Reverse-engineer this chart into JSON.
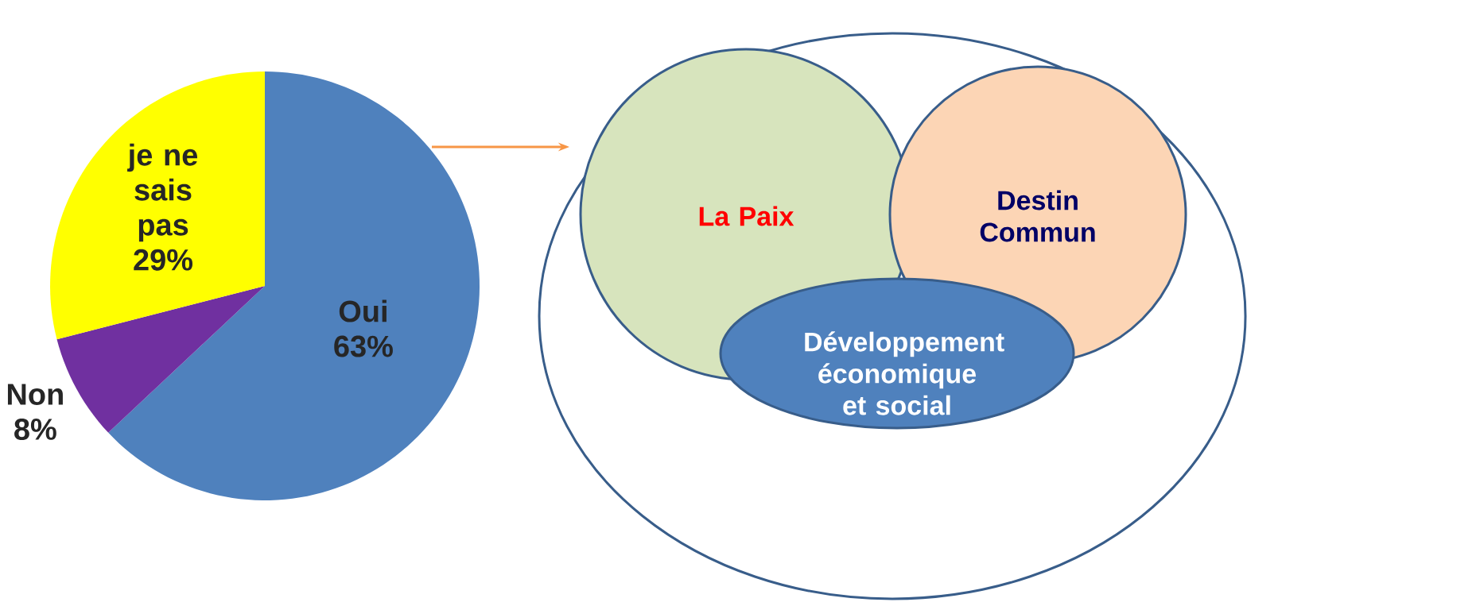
{
  "chart_data": [
    {
      "type": "pie",
      "categories": [
        "Oui",
        "Non",
        "je ne sais pas"
      ],
      "values": [
        63,
        8,
        29
      ],
      "colors": [
        "#4f81bd",
        "#7030a0",
        "#ffff00"
      ],
      "value_labels": [
        "63%",
        "8%",
        "29%"
      ]
    },
    {
      "type": "other",
      "annotations": [
        "La Paix",
        "Destin Commun",
        "Développement économique et social"
      ]
    }
  ]
}
